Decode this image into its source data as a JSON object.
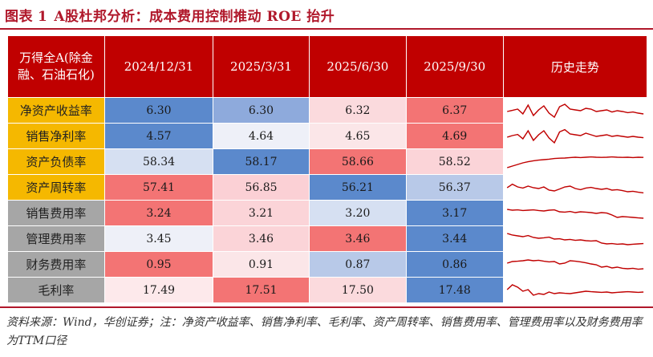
{
  "title": {
    "prefix": "图表",
    "number": "1",
    "text": "A股杜邦分析：成本费用控制推动 ROE 抬升"
  },
  "table": {
    "corner_header": "万得全A(除金融、石油石化)",
    "columns": [
      "2024/12/31",
      "2025/3/31",
      "2025/6/30",
      "2025/9/30"
    ],
    "trend_header": "历史走势",
    "rows": [
      {
        "label": "净资产收益率",
        "group": "dupont",
        "values": [
          "6.30",
          "6.30",
          "6.32",
          "6.37"
        ],
        "colors": [
          "#5b89cc",
          "#8eaadc",
          "#fbdadd",
          "#f37474"
        ],
        "spark": [
          0.45,
          0.52,
          0.6,
          0.3,
          0.85,
          0.2,
          0.55,
          0.8,
          0.35,
          0.1,
          0.75,
          0.9,
          0.6,
          0.55,
          0.5,
          0.65,
          0.6,
          0.45,
          0.5,
          0.55,
          0.42,
          0.5,
          0.45,
          0.38,
          0.42,
          0.35,
          0.3
        ]
      },
      {
        "label": "销售净利率",
        "group": "dupont",
        "values": [
          "4.57",
          "4.64",
          "4.65",
          "4.69"
        ],
        "colors": [
          "#5b89cc",
          "#eef0f8",
          "#fbe6e8",
          "#f37474"
        ],
        "spark": [
          0.45,
          0.55,
          0.62,
          0.35,
          0.85,
          0.25,
          0.6,
          0.85,
          0.4,
          0.1,
          0.78,
          0.92,
          0.65,
          0.6,
          0.55,
          0.7,
          0.6,
          0.5,
          0.55,
          0.6,
          0.5,
          0.55,
          0.5,
          0.45,
          0.5,
          0.45,
          0.42
        ]
      },
      {
        "label": "资产负债率",
        "group": "dupont",
        "values": [
          "58.34",
          "58.17",
          "58.66",
          "58.52"
        ],
        "colors": [
          "#d6e0f2",
          "#5b89cc",
          "#f37474",
          "#fbd4d8"
        ],
        "spark": [
          0.15,
          0.25,
          0.35,
          0.45,
          0.52,
          0.58,
          0.62,
          0.65,
          0.68,
          0.72,
          0.74,
          0.75,
          0.78,
          0.8,
          0.78,
          0.8,
          0.82,
          0.8,
          0.79,
          0.8,
          0.82,
          0.8,
          0.79,
          0.8,
          0.78,
          0.8,
          0.79
        ]
      },
      {
        "label": "资产周转率",
        "group": "dupont",
        "values": [
          "57.41",
          "56.85",
          "56.21",
          "56.37"
        ],
        "colors": [
          "#f37474",
          "#fbd0d5",
          "#5b89cc",
          "#b8c9e8"
        ],
        "spark": [
          0.5,
          0.72,
          0.55,
          0.48,
          0.6,
          0.5,
          0.45,
          0.55,
          0.35,
          0.3,
          0.42,
          0.55,
          0.6,
          0.45,
          0.38,
          0.48,
          0.52,
          0.45,
          0.4,
          0.45,
          0.35,
          0.38,
          0.32,
          0.25,
          0.28,
          0.22,
          0.18
        ]
      },
      {
        "label": "销售费用率",
        "group": "cost",
        "values": [
          "3.24",
          "3.21",
          "3.20",
          "3.17"
        ],
        "colors": [
          "#f37474",
          "#fbd4d8",
          "#d6e0f2",
          "#5b89cc"
        ],
        "spark": [
          0.75,
          0.7,
          0.72,
          0.68,
          0.7,
          0.72,
          0.68,
          0.65,
          0.7,
          0.72,
          0.6,
          0.58,
          0.62,
          0.55,
          0.6,
          0.58,
          0.55,
          0.5,
          0.55,
          0.52,
          0.4,
          0.25,
          0.3,
          0.28,
          0.25,
          0.22,
          0.2
        ]
      },
      {
        "label": "管理费用率",
        "group": "cost",
        "values": [
          "3.45",
          "3.46",
          "3.46",
          "3.44"
        ],
        "colors": [
          "#eef0f8",
          "#fbd4d8",
          "#f37474",
          "#5b89cc"
        ],
        "spark": [
          0.85,
          0.75,
          0.7,
          0.65,
          0.72,
          0.6,
          0.55,
          0.58,
          0.62,
          0.5,
          0.52,
          0.45,
          0.48,
          0.42,
          0.45,
          0.4,
          0.38,
          0.4,
          0.25,
          0.2,
          0.22,
          0.18,
          0.2,
          0.15,
          0.18,
          0.2,
          0.22
        ]
      },
      {
        "label": "财务费用率",
        "group": "cost",
        "values": [
          "0.95",
          "0.91",
          "0.87",
          "0.86"
        ],
        "colors": [
          "#f37474",
          "#fbe6e8",
          "#b8c9e8",
          "#5b89cc"
        ],
        "spark": [
          0.6,
          0.7,
          0.72,
          0.75,
          0.8,
          0.75,
          0.78,
          0.72,
          0.68,
          0.7,
          0.55,
          0.6,
          0.75,
          0.72,
          0.68,
          0.62,
          0.55,
          0.5,
          0.35,
          0.4,
          0.3,
          0.35,
          0.28,
          0.25,
          0.28,
          0.22,
          0.25
        ]
      },
      {
        "label": "毛利率",
        "group": "cost",
        "values": [
          "17.49",
          "17.51",
          "17.50",
          "17.48"
        ],
        "colors": [
          "#fde9eb",
          "#f37474",
          "#fbdadd",
          "#5b89cc"
        ],
        "spark": [
          0.55,
          0.85,
          0.7,
          0.45,
          0.55,
          0.2,
          0.3,
          0.25,
          0.4,
          0.3,
          0.35,
          0.32,
          0.3,
          0.35,
          0.4,
          0.45,
          0.42,
          0.4,
          0.38,
          0.4,
          0.35,
          0.38,
          0.4,
          0.42,
          0.4,
          0.38,
          0.4
        ]
      }
    ],
    "colors": {
      "header": "#c00000",
      "dupont_label": "#f5b800",
      "cost_label": "#a6a6a6",
      "spark_line": "#c00000",
      "accent": "#b0182b"
    }
  },
  "source": "资料来源：Wind，华创证券；注：净资产收益率、销售净利率、毛利率、资产周转率、销售费用率、管理费用率以及财务费用率为TTM口径"
}
